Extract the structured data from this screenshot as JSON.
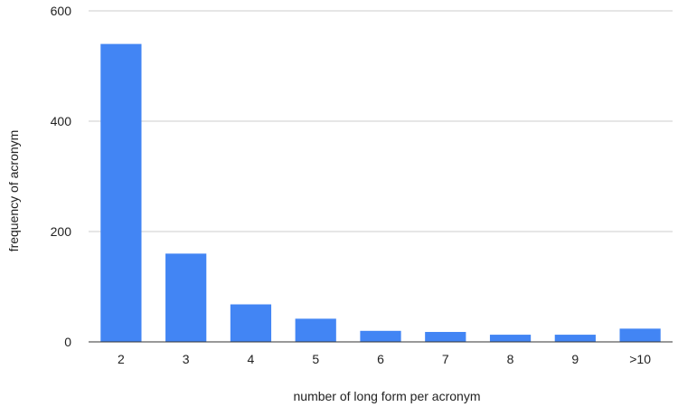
{
  "chart_data": {
    "type": "bar",
    "title": "",
    "xlabel": "number of long form per acronym",
    "ylabel": "frequency of acronym",
    "categories": [
      "2",
      "3",
      "4",
      "5",
      "6",
      "7",
      "8",
      "9",
      ">10"
    ],
    "values": [
      540,
      160,
      68,
      42,
      20,
      18,
      13,
      13,
      24
    ],
    "ylim": [
      0,
      600
    ],
    "yticks": [
      0,
      200,
      400,
      600
    ],
    "grid": true,
    "legend": "none",
    "bar_color": "#4285f4"
  }
}
